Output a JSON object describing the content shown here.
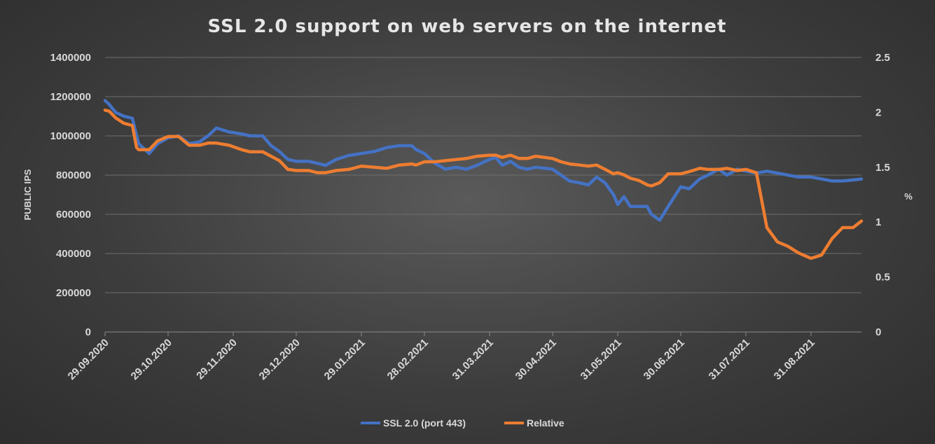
{
  "chart_data": {
    "type": "line",
    "title": "SSL 2.0 support on web servers on the internet",
    "ylabel": "PUBLIC IPS",
    "y2label": "%",
    "ylim": [
      0,
      1400000
    ],
    "y2lim": [
      0,
      2.5
    ],
    "y_ticks": [
      "0",
      "200000",
      "400000",
      "600000",
      "800000",
      "1000000",
      "1200000",
      "1400000"
    ],
    "y2_ticks": [
      "0",
      "0.5",
      "1",
      "1.5",
      "2",
      "2.5"
    ],
    "x_ticks": [
      "29.09.2020",
      "29.10.2020",
      "29.11.2020",
      "29.12.2020",
      "29.01.2021",
      "28.02.2021",
      "31.03.2021",
      "30.04.2021",
      "31.05.2021",
      "30.06.2021",
      "31.07.2021",
      "31.08.2021"
    ],
    "xlim": [
      "29.09.2020",
      "24.09.2021"
    ],
    "legend_position": "bottom",
    "grid": true,
    "series": [
      {
        "name": "SSL 2.0 (port 443)",
        "axis": "left",
        "color": "#4472c4",
        "x": [
          "29.09.2020",
          "01.10.2020",
          "04.10.2020",
          "08.10.2020",
          "12.10.2020",
          "14.10.2020",
          "15.10.2020",
          "20.10.2020",
          "24.10.2020",
          "29.10.2020",
          "03.11.2020",
          "08.11.2020",
          "13.11.2020",
          "17.11.2020",
          "21.11.2020",
          "27.11.2020",
          "03.12.2020",
          "07.12.2020",
          "13.12.2020",
          "17.12.2020",
          "21.12.2020",
          "25.12.2020",
          "29.12.2020",
          "04.01.2021",
          "08.01.2021",
          "12.01.2021",
          "17.01.2021",
          "23.01.2021",
          "29.01.2021",
          "04.02.2021",
          "10.02.2021",
          "16.02.2021",
          "22.02.2021",
          "24.02.2021",
          "28.02.2021",
          "05.03.2021",
          "10.03.2021",
          "15.03.2021",
          "20.03.2021",
          "25.03.2021",
          "31.03.2021",
          "03.04.2021",
          "06.04.2021",
          "10.04.2021",
          "14.04.2021",
          "18.04.2021",
          "22.04.2021",
          "30.04.2021",
          "04.05.2021",
          "08.05.2021",
          "13.05.2021",
          "17.05.2021",
          "21.05.2021",
          "25.05.2021",
          "29.05.2021",
          "31.05.2021",
          "03.06.2021",
          "06.06.2021",
          "10.06.2021",
          "14.06.2021",
          "16.06.2021",
          "20.06.2021",
          "24.06.2021",
          "30.06.2021",
          "04.07.2021",
          "09.07.2021",
          "13.07.2021",
          "18.07.2021",
          "22.07.2021",
          "27.07.2021",
          "31.07.2021",
          "05.08.2021",
          "10.08.2021",
          "15.08.2021",
          "20.08.2021",
          "25.08.2021",
          "31.08.2021",
          "05.09.2021",
          "10.09.2021",
          "15.09.2021",
          "20.09.2021",
          "24.09.2021"
        ],
        "values": [
          1180000,
          1160000,
          1120000,
          1100000,
          1090000,
          1000000,
          960000,
          910000,
          960000,
          990000,
          1000000,
          960000,
          970000,
          1000000,
          1040000,
          1020000,
          1010000,
          1000000,
          1000000,
          950000,
          920000,
          880000,
          870000,
          870000,
          860000,
          850000,
          880000,
          900000,
          910000,
          920000,
          940000,
          950000,
          950000,
          930000,
          910000,
          860000,
          830000,
          840000,
          830000,
          850000,
          880000,
          890000,
          850000,
          870000,
          840000,
          830000,
          840000,
          830000,
          800000,
          770000,
          760000,
          750000,
          790000,
          760000,
          700000,
          650000,
          690000,
          640000,
          640000,
          640000,
          600000,
          570000,
          640000,
          740000,
          730000,
          780000,
          800000,
          830000,
          800000,
          830000,
          820000,
          810000,
          820000,
          810000,
          800000,
          790000,
          790000,
          780000,
          770000,
          770000,
          775000,
          780000
        ]
      },
      {
        "name": "Relative",
        "axis": "right",
        "color": "#ed7d31",
        "x": [
          "29.09.2020",
          "01.10.2020",
          "04.10.2020",
          "08.10.2020",
          "12.10.2020",
          "14.10.2020",
          "15.10.2020",
          "20.10.2020",
          "24.10.2020",
          "29.10.2020",
          "03.11.2020",
          "08.11.2020",
          "13.11.2020",
          "17.11.2020",
          "21.11.2020",
          "27.11.2020",
          "03.12.2020",
          "07.12.2020",
          "13.12.2020",
          "17.12.2020",
          "21.12.2020",
          "25.12.2020",
          "29.12.2020",
          "04.01.2021",
          "08.01.2021",
          "12.01.2021",
          "17.01.2021",
          "23.01.2021",
          "29.01.2021",
          "04.02.2021",
          "10.02.2021",
          "16.02.2021",
          "22.02.2021",
          "24.02.2021",
          "28.02.2021",
          "05.03.2021",
          "10.03.2021",
          "15.03.2021",
          "20.03.2021",
          "25.03.2021",
          "31.03.2021",
          "03.04.2021",
          "06.04.2021",
          "10.04.2021",
          "14.04.2021",
          "18.04.2021",
          "22.04.2021",
          "30.04.2021",
          "04.05.2021",
          "08.05.2021",
          "13.05.2021",
          "17.05.2021",
          "21.05.2021",
          "25.05.2021",
          "29.05.2021",
          "31.05.2021",
          "03.06.2021",
          "06.06.2021",
          "10.06.2021",
          "14.06.2021",
          "16.06.2021",
          "20.06.2021",
          "24.06.2021",
          "30.06.2021",
          "04.07.2021",
          "09.07.2021",
          "13.07.2021",
          "18.07.2021",
          "22.07.2021",
          "27.07.2021",
          "31.07.2021",
          "05.08.2021",
          "10.08.2021",
          "15.08.2021",
          "20.08.2021",
          "25.08.2021",
          "31.08.2021",
          "05.09.2021",
          "10.09.2021",
          "15.09.2021",
          "20.09.2021",
          "24.09.2021"
        ],
        "values": [
          2.02,
          2.01,
          1.95,
          1.9,
          1.88,
          1.68,
          1.66,
          1.66,
          1.74,
          1.78,
          1.78,
          1.7,
          1.7,
          1.72,
          1.72,
          1.7,
          1.66,
          1.64,
          1.64,
          1.6,
          1.56,
          1.48,
          1.47,
          1.47,
          1.45,
          1.45,
          1.47,
          1.48,
          1.51,
          1.5,
          1.49,
          1.52,
          1.53,
          1.52,
          1.55,
          1.55,
          1.56,
          1.57,
          1.58,
          1.6,
          1.61,
          1.61,
          1.59,
          1.61,
          1.58,
          1.58,
          1.6,
          1.58,
          1.55,
          1.53,
          1.52,
          1.51,
          1.52,
          1.48,
          1.44,
          1.45,
          1.43,
          1.4,
          1.38,
          1.34,
          1.33,
          1.36,
          1.44,
          1.44,
          1.46,
          1.49,
          1.48,
          1.48,
          1.49,
          1.47,
          1.48,
          1.45,
          0.95,
          0.82,
          0.78,
          0.72,
          0.67,
          0.7,
          0.85,
          0.95,
          0.95,
          1.01
        ]
      }
    ]
  }
}
